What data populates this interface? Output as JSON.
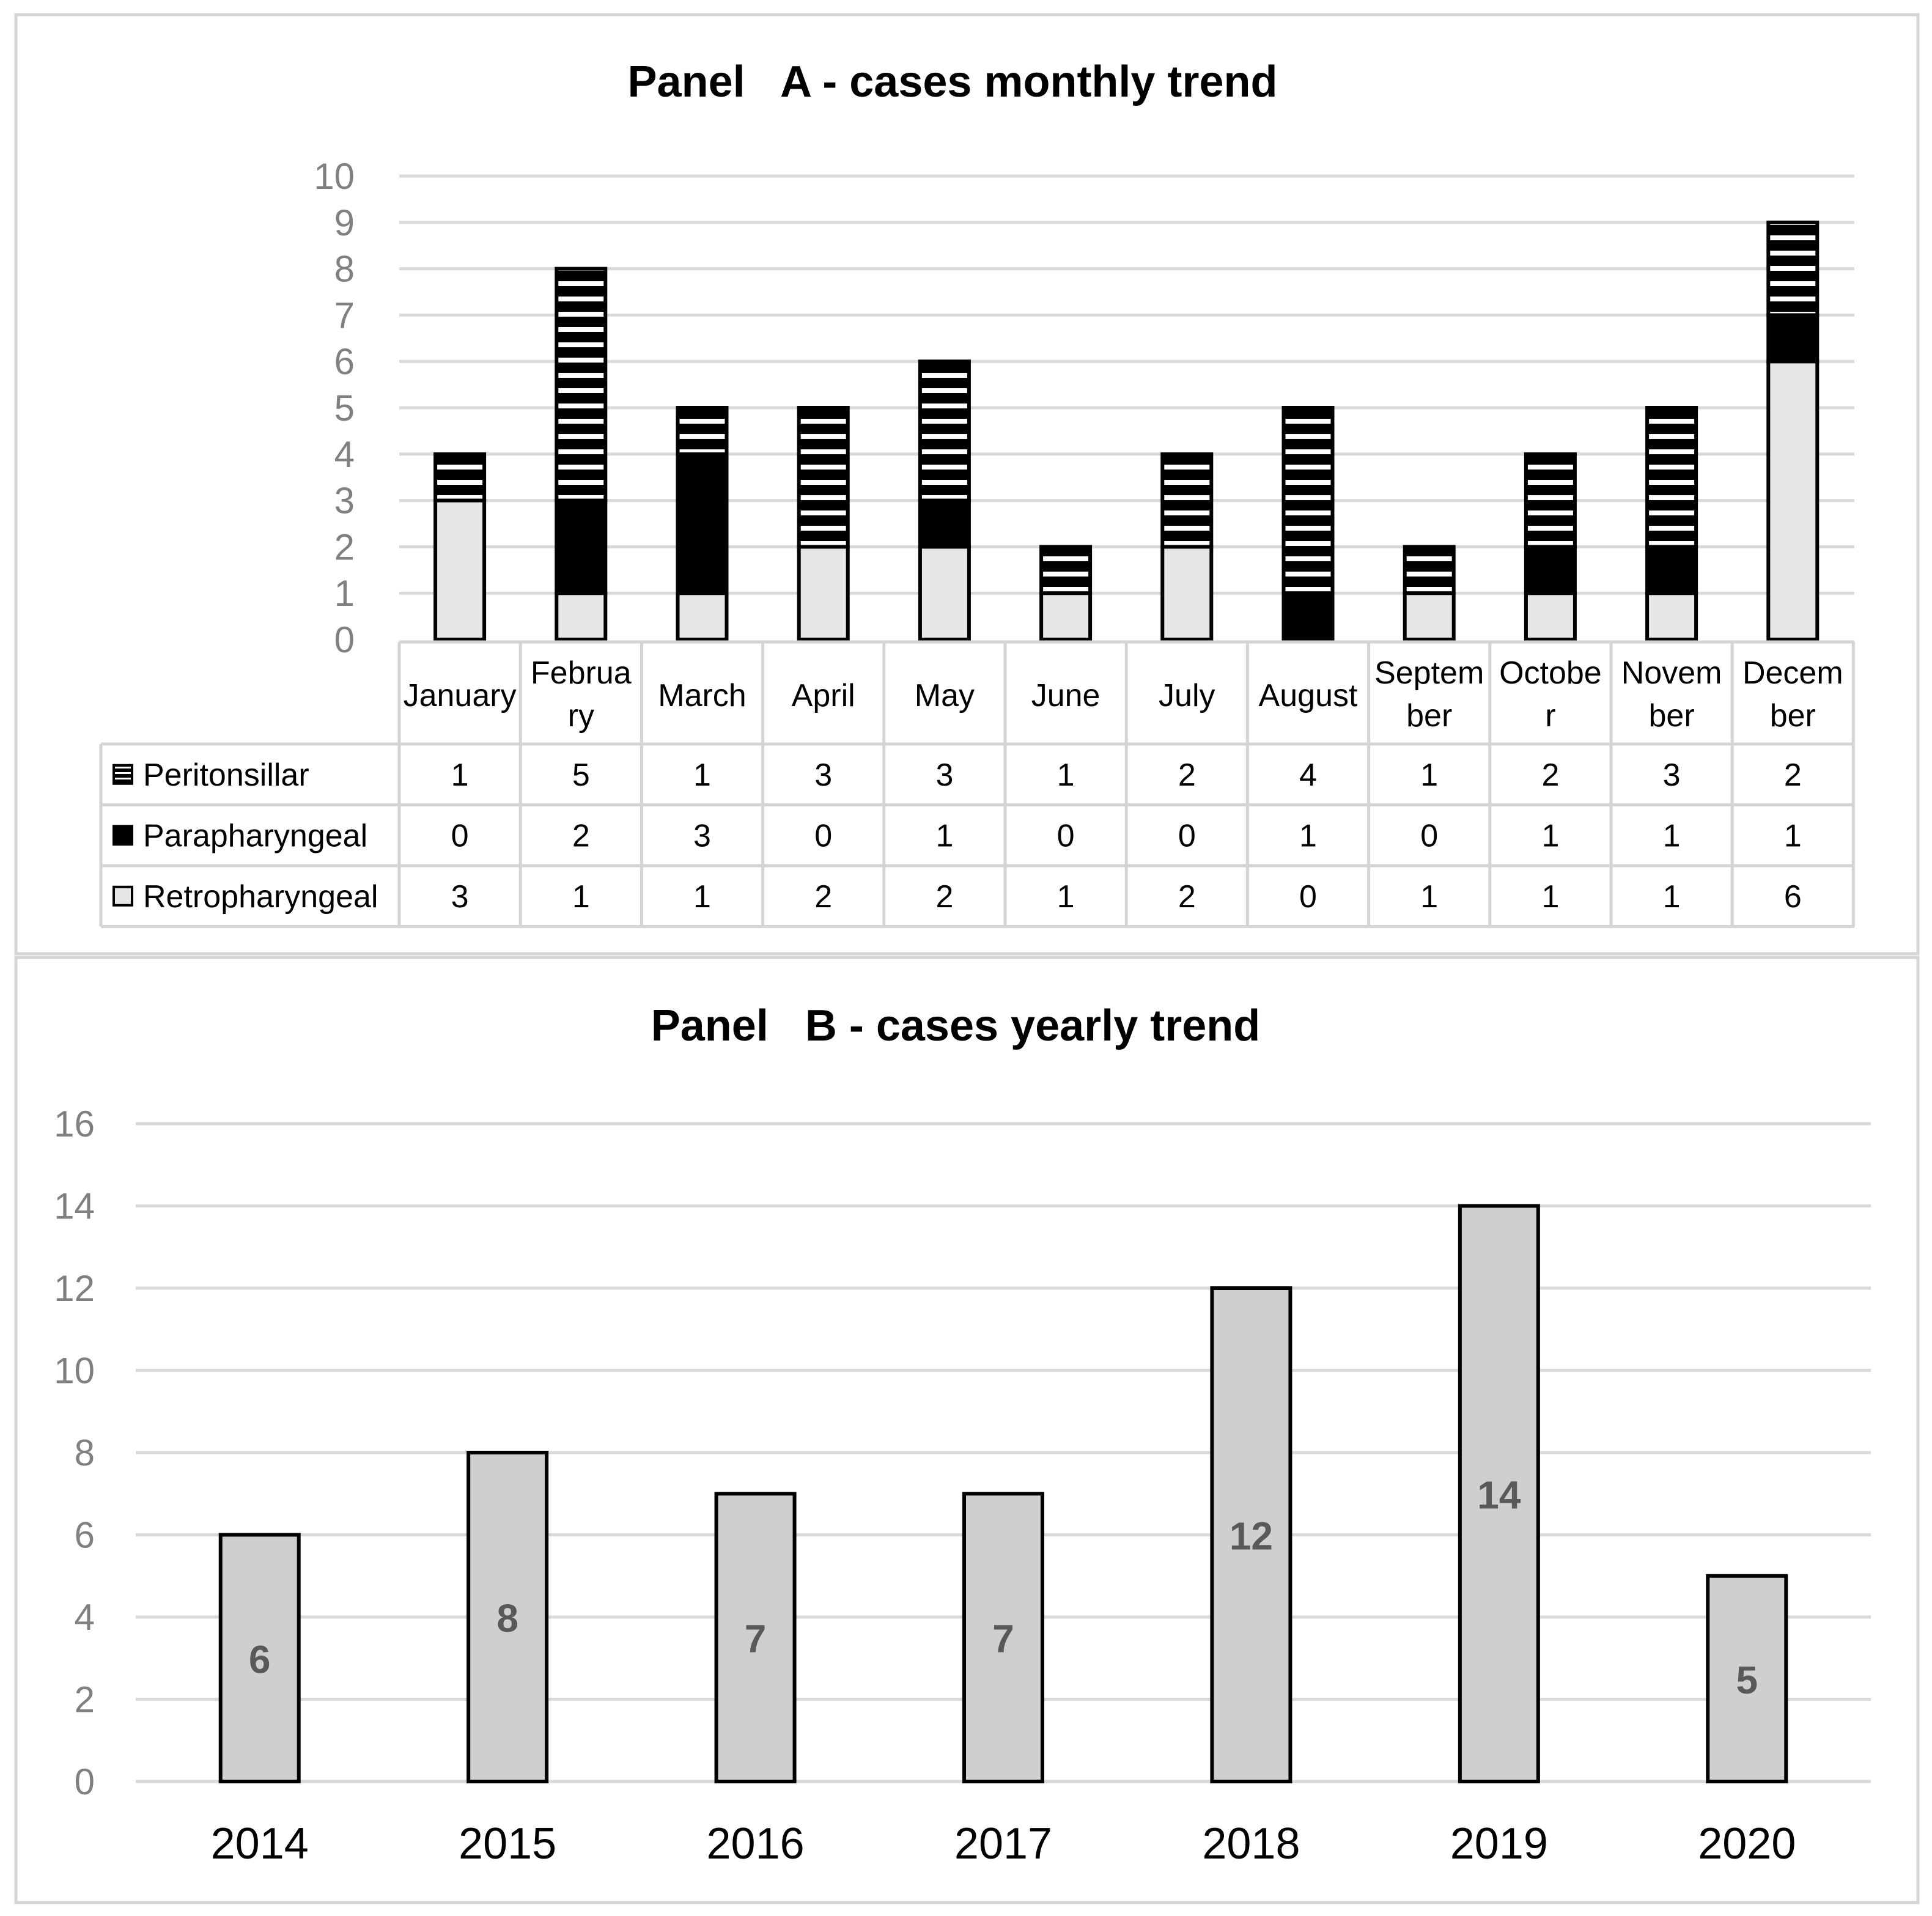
{
  "chart_data": [
    {
      "type": "bar",
      "stacked": true,
      "title": "Panel   A - cases monthly trend",
      "categories": [
        [
          "January"
        ],
        [
          "Februa",
          "ry"
        ],
        [
          "March"
        ],
        [
          "April"
        ],
        [
          "May"
        ],
        [
          "June"
        ],
        [
          "July"
        ],
        [
          "August"
        ],
        [
          "Septem",
          "ber"
        ],
        [
          "Octobe",
          "r"
        ],
        [
          "Novem",
          "ber"
        ],
        [
          "Decem",
          "ber"
        ]
      ],
      "ylim": [
        0,
        10
      ],
      "yticks": [
        "0",
        "1",
        "2",
        "3",
        "4",
        "5",
        "6",
        "7",
        "8",
        "9",
        "10"
      ],
      "grid": true,
      "legend": "data table below the axis",
      "series": [
        {
          "name": "Retropharyngeal",
          "pattern": "light",
          "values": [
            3,
            1,
            1,
            2,
            2,
            1,
            2,
            0,
            1,
            1,
            1,
            6
          ]
        },
        {
          "name": "Parapharyngeal",
          "pattern": "solid",
          "values": [
            0,
            2,
            3,
            0,
            1,
            0,
            0,
            1,
            0,
            1,
            1,
            1
          ]
        },
        {
          "name": "Peritonsillar",
          "pattern": "striped",
          "values": [
            1,
            5,
            1,
            3,
            3,
            1,
            2,
            4,
            1,
            2,
            3,
            2
          ]
        }
      ],
      "table_row_order": [
        "Peritonsillar",
        "Parapharyngeal",
        "Retropharyngeal"
      ]
    },
    {
      "type": "bar",
      "title": "Panel   B - cases yearly trend",
      "categories": [
        "2014",
        "2015",
        "2016",
        "2017",
        "2018",
        "2019",
        "2020"
      ],
      "values": [
        6,
        8,
        7,
        7,
        12,
        14,
        5
      ],
      "ylim": [
        0,
        16
      ],
      "yticks": [
        "0",
        "2",
        "4",
        "6",
        "8",
        "10",
        "12",
        "14",
        "16"
      ],
      "grid": true,
      "data_labels": true
    }
  ],
  "colors": {
    "light_fill": "#e6e6e6",
    "dark_fill": "#000000",
    "stripe_white": "#ffffff",
    "bar_b_fill": "#d0cece",
    "gridline": "#d9d9d9",
    "tick_text": "#808080",
    "data_label": "#595959",
    "frame": "#d4d4d4",
    "text": "#000000"
  }
}
